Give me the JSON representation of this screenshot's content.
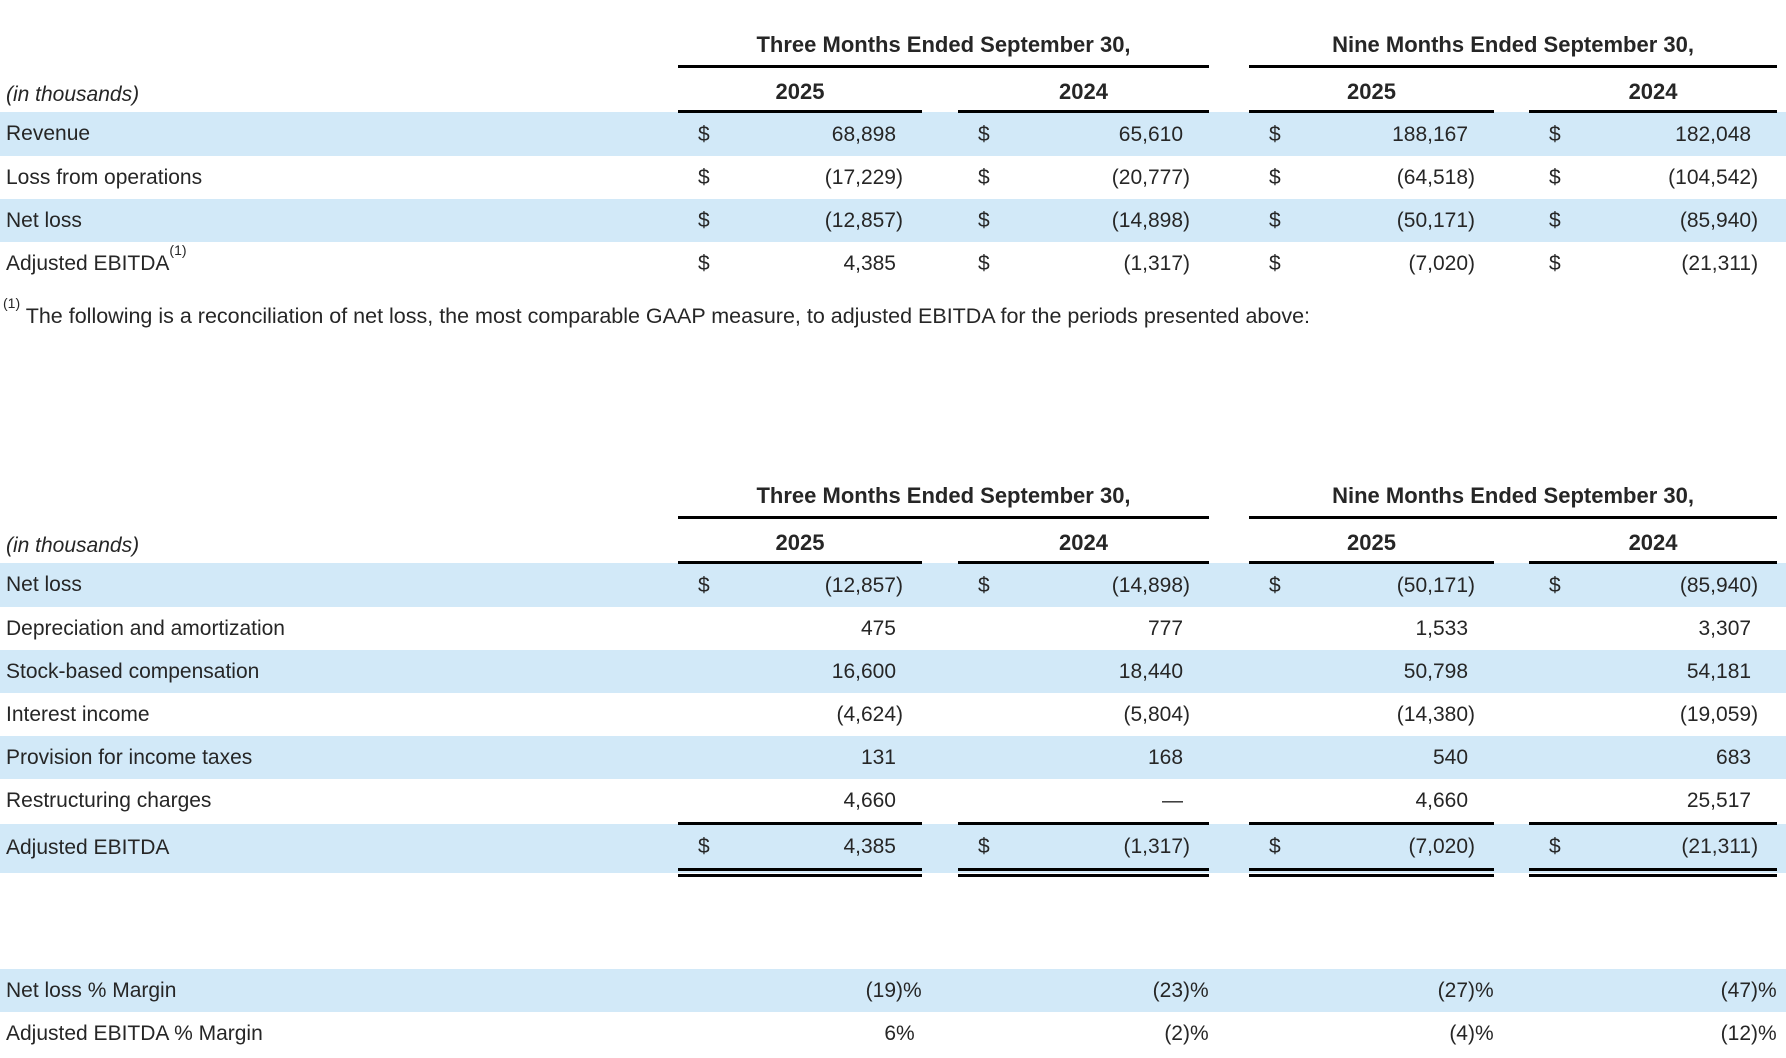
{
  "doc": {
    "unit_label": "(in thousands)",
    "currency_symbol": "$",
    "footnote_marker": "(1)",
    "footnote_text": " The following is a reconciliation of net loss, the most comparable GAAP measure, to adjusted EBITDA for the periods presented above:",
    "colors": {
      "row_highlight": "#d2e9f8",
      "rule": "#000000",
      "text": "#262626"
    }
  },
  "tables": [
    {
      "name": "summary",
      "group_headers": [
        "Three Months Ended September 30,",
        "Nine Months Ended September 30,"
      ],
      "year_headers": [
        "2025",
        "2024",
        "2025",
        "2024"
      ],
      "rows": [
        {
          "label": "Revenue",
          "sup": "",
          "dollar": true,
          "shaded": true,
          "total": false,
          "values": [
            "68,898",
            "65,610",
            "188,167",
            "182,048"
          ]
        },
        {
          "label": "Loss from operations",
          "sup": "",
          "dollar": true,
          "shaded": false,
          "total": false,
          "values": [
            "(17,229)",
            "(20,777)",
            "(64,518)",
            "(104,542)"
          ]
        },
        {
          "label": "Net loss",
          "sup": "",
          "dollar": true,
          "shaded": true,
          "total": false,
          "values": [
            "(12,857)",
            "(14,898)",
            "(50,171)",
            "(85,940)"
          ]
        },
        {
          "label": "Adjusted EBITDA",
          "sup": "(1)",
          "dollar": true,
          "shaded": false,
          "total": false,
          "values": [
            "4,385",
            "(1,317)",
            "(7,020)",
            "(21,311)"
          ]
        }
      ]
    },
    {
      "name": "reconciliation",
      "group_headers": [
        "Three Months Ended September 30,",
        "Nine Months Ended September 30,"
      ],
      "year_headers": [
        "2025",
        "2024",
        "2025",
        "2024"
      ],
      "rows": [
        {
          "label": "Net loss",
          "sup": "",
          "dollar": true,
          "shaded": true,
          "total": false,
          "values": [
            "(12,857)",
            "(14,898)",
            "(50,171)",
            "(85,940)"
          ]
        },
        {
          "label": "Depreciation and amortization",
          "sup": "",
          "dollar": false,
          "shaded": false,
          "total": false,
          "values": [
            "475",
            "777",
            "1,533",
            "3,307"
          ]
        },
        {
          "label": "Stock-based compensation",
          "sup": "",
          "dollar": false,
          "shaded": true,
          "total": false,
          "values": [
            "16,600",
            "18,440",
            "50,798",
            "54,181"
          ]
        },
        {
          "label": "Interest income",
          "sup": "",
          "dollar": false,
          "shaded": false,
          "total": false,
          "values": [
            "(4,624)",
            "(5,804)",
            "(14,380)",
            "(19,059)"
          ]
        },
        {
          "label": "Provision for income taxes",
          "sup": "",
          "dollar": false,
          "shaded": true,
          "total": false,
          "values": [
            "131",
            "168",
            "540",
            "683"
          ]
        },
        {
          "label": "Restructuring charges",
          "sup": "",
          "dollar": false,
          "shaded": false,
          "total": false,
          "values": [
            "4,660",
            "—",
            "4,660",
            "25,517"
          ]
        },
        {
          "label": "Adjusted EBITDA",
          "sup": "",
          "dollar": true,
          "shaded": true,
          "total": true,
          "values": [
            "4,385",
            "(1,317)",
            "(7,020)",
            "(21,311)"
          ]
        }
      ]
    }
  ],
  "margins": {
    "rows": [
      {
        "label": "Net loss % Margin",
        "sup": "",
        "dollar": false,
        "shaded": true,
        "total": false,
        "values": [
          "(19)%",
          "(23)%",
          "(27)%",
          "(47)%"
        ]
      },
      {
        "label": "Adjusted EBITDA % Margin",
        "sup": "",
        "dollar": false,
        "shaded": false,
        "total": false,
        "values": [
          "6%",
          "(2)%",
          "(4)%",
          "(12)%"
        ]
      }
    ]
  }
}
